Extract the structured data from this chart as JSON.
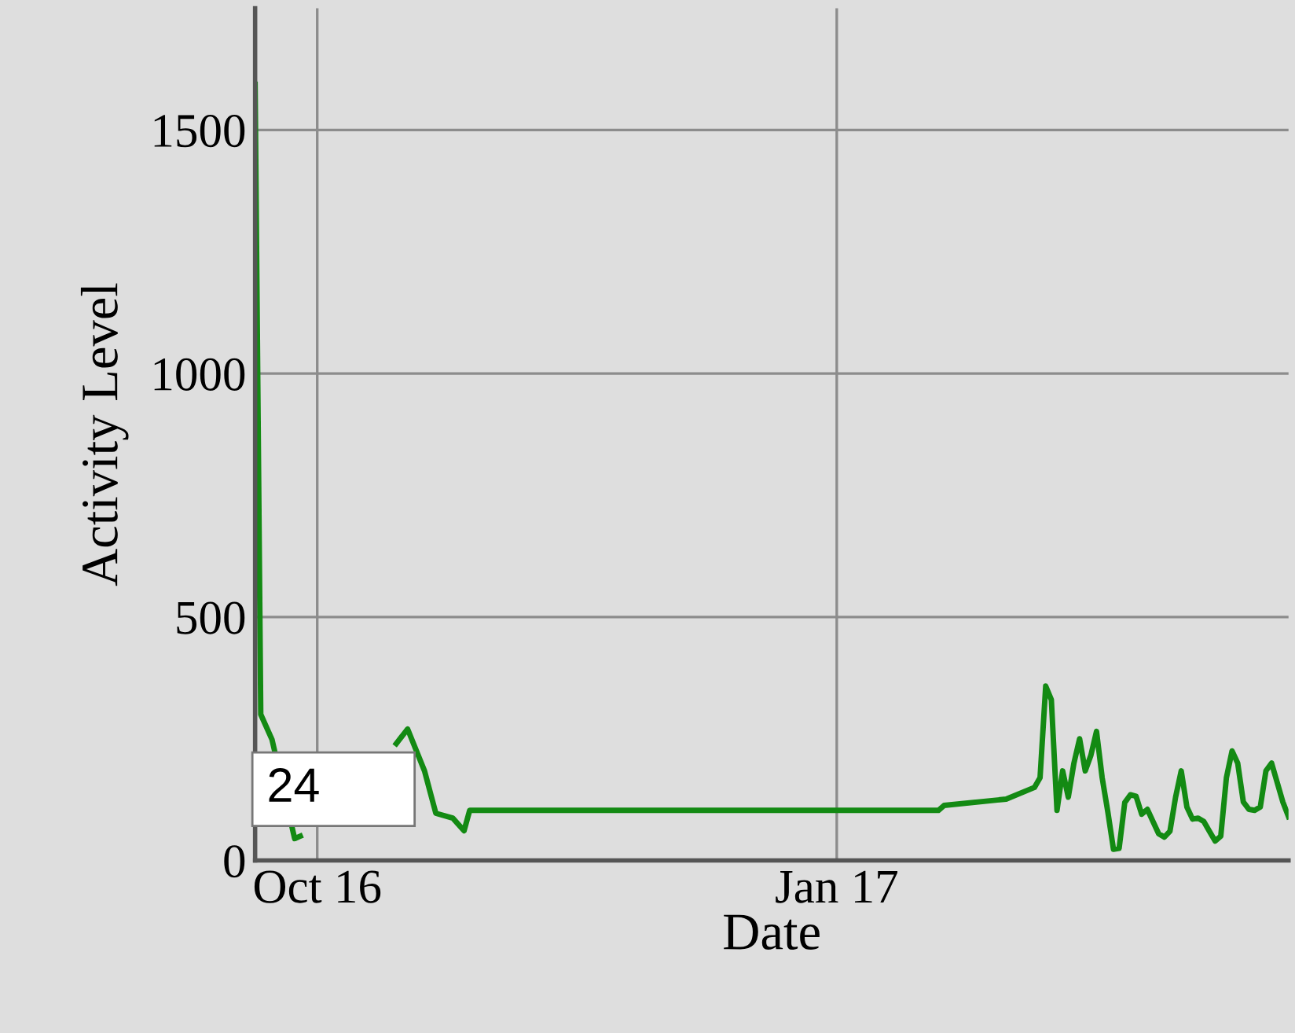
{
  "chart_data": {
    "type": "line",
    "xlabel": "Date",
    "ylabel": "Activity Level",
    "x": [
      "2016-09-20",
      "2016-09-21",
      "2016-09-23",
      "2016-09-27",
      "2016-09-28",
      "2016-10-05",
      "2016-10-15",
      "2016-10-17",
      "2016-10-20",
      "2016-10-22",
      "2016-10-25",
      "2016-10-27",
      "2016-10-28",
      "2017-01-19",
      "2017-01-20",
      "2017-01-31",
      "2017-02-05",
      "2017-02-06",
      "2017-02-07",
      "2017-02-08",
      "2017-02-09",
      "2017-02-10",
      "2017-02-11",
      "2017-02-12",
      "2017-02-13",
      "2017-02-14",
      "2017-02-15",
      "2017-02-16",
      "2017-02-17",
      "2017-02-18",
      "2017-02-19",
      "2017-02-20",
      "2017-02-21",
      "2017-02-22",
      "2017-02-23",
      "2017-02-24",
      "2017-02-25",
      "2017-02-26",
      "2017-02-27",
      "2017-02-28",
      "2017-03-01",
      "2017-03-02",
      "2017-03-03",
      "2017-03-04",
      "2017-03-05",
      "2017-03-06",
      "2017-03-07",
      "2017-03-08",
      "2017-03-09",
      "2017-03-10",
      "2017-03-11",
      "2017-03-12",
      "2017-03-13",
      "2017-03-14",
      "2017-03-15",
      "2017-03-16",
      "2017-03-17",
      "2017-03-18",
      "2017-03-19",
      "2017-03-20",
      "2017-03-21",
      "2017-03-22"
    ],
    "series": [
      {
        "color": "#138a13",
        "values": [
          1594,
          300,
          248,
          45,
          50,
          null,
          240,
          270,
          184,
          97,
          87,
          61,
          103,
          103,
          113,
          126,
          150,
          170,
          358,
          330,
          103,
          184,
          130,
          200,
          250,
          184,
          216,
          265,
          170,
          100,
          23,
          25,
          119,
          135,
          132,
          95,
          105,
          80,
          55,
          48,
          60,
          130,
          184,
          110,
          85,
          87,
          80,
          60,
          40,
          50,
          170,
          225,
          200,
          120,
          105,
          103,
          110,
          184,
          200,
          160,
          120,
          90
        ]
      }
    ],
    "xlim": [
      "2016-09-20",
      "2017-03-22"
    ],
    "ylim": [
      0,
      1750
    ],
    "xticks": [
      {
        "value": "2016-10-01",
        "label": "Oct 16"
      },
      {
        "value": "2017-01-01",
        "label": "Jan 17"
      }
    ],
    "yticks": [
      0,
      500,
      1000,
      1500
    ],
    "grid": true,
    "legend": false,
    "marker": "none",
    "line_style": "solid",
    "annotations": [
      "24"
    ]
  }
}
